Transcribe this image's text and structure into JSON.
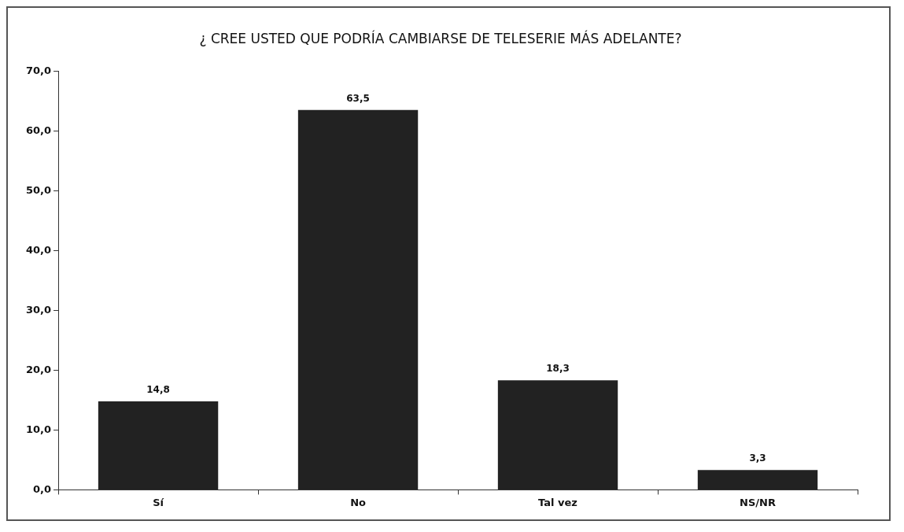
{
  "chart_data": {
    "type": "bar",
    "title": "¿ CREE USTED QUE PODRÍA CAMBIARSE DE TELESERIE MÁS ADELANTE?",
    "categories": [
      "Sí",
      "No",
      "Tal vez",
      "NS/NR"
    ],
    "values": [
      14.8,
      63.5,
      18.3,
      3.3
    ],
    "value_labels": [
      "14,8",
      "63,5",
      "18,3",
      "3,3"
    ],
    "color": "#222222",
    "ylim": [
      0,
      70
    ],
    "yticks": [
      {
        "value": 0,
        "label": "0,0"
      },
      {
        "value": 10,
        "label": "10,0"
      },
      {
        "value": 20,
        "label": "20,0"
      },
      {
        "value": 30,
        "label": "30,0"
      },
      {
        "value": 40,
        "label": "40,0"
      },
      {
        "value": 50,
        "label": "50,0"
      },
      {
        "value": 60,
        "label": "60,0"
      },
      {
        "value": 70,
        "label": "70,0"
      }
    ],
    "grid": false,
    "legend": false
  }
}
